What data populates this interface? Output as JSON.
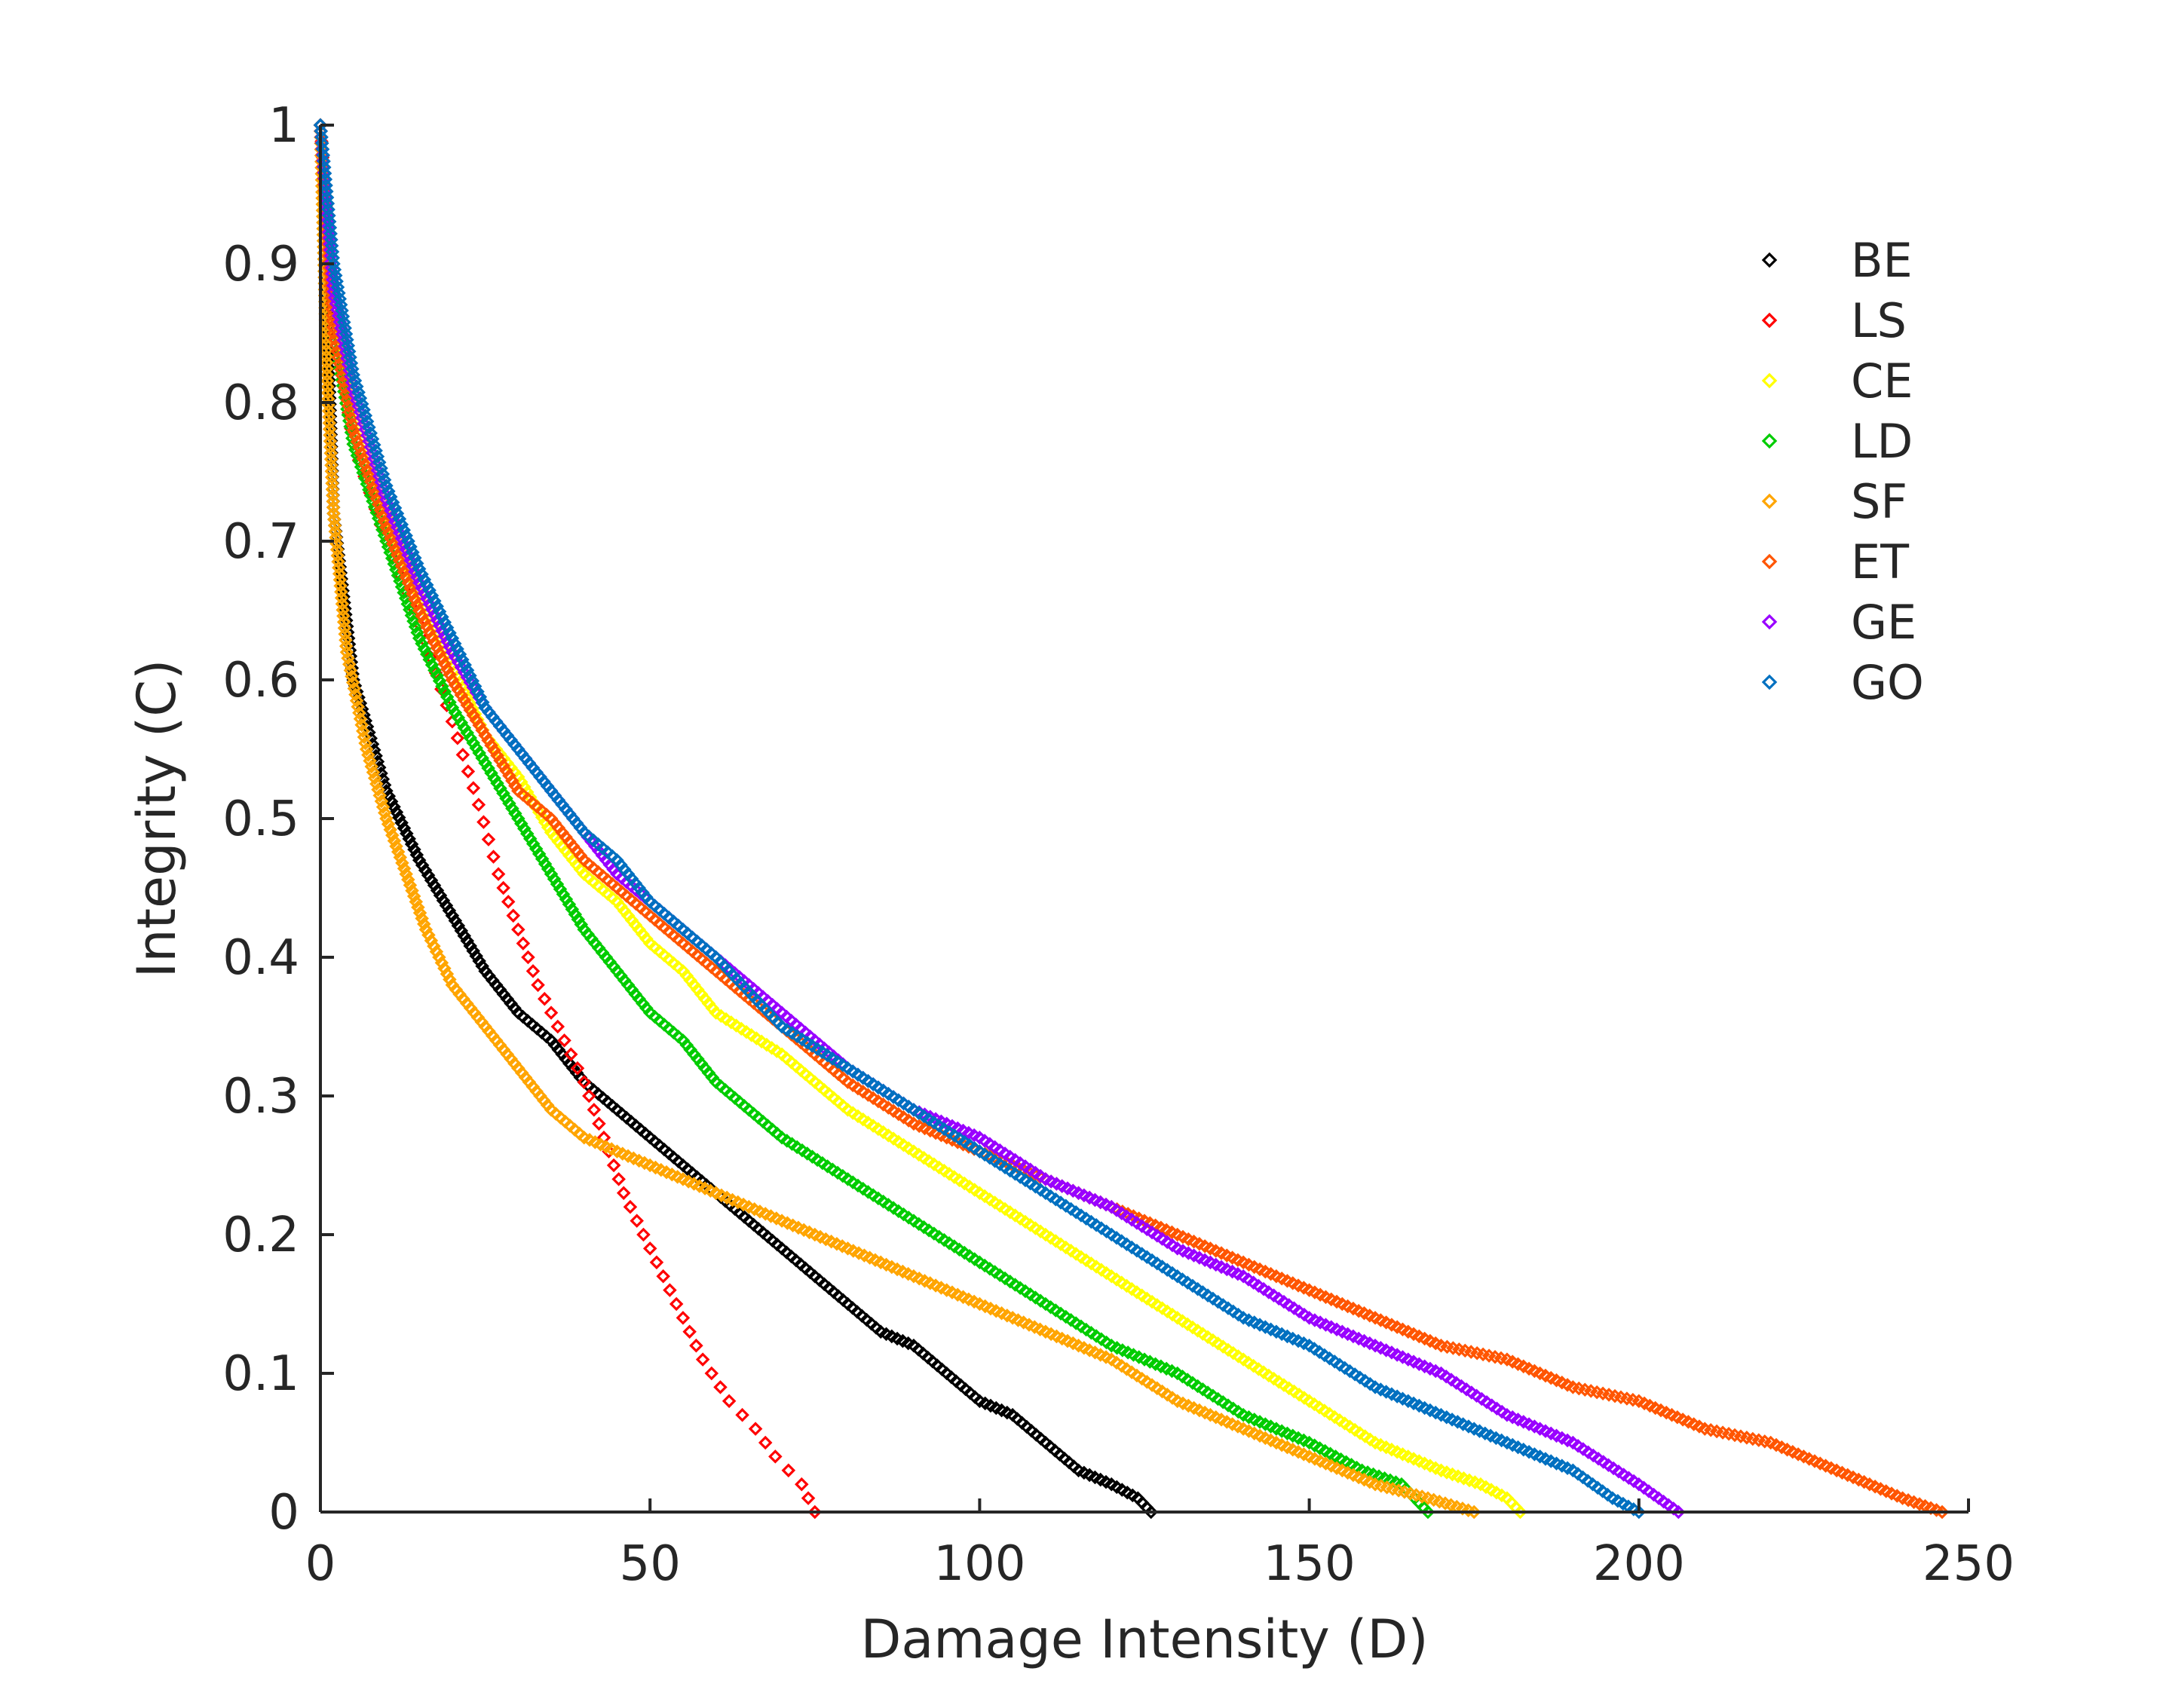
{
  "chart_data": {
    "type": "scatter",
    "title": "",
    "xlabel": "Damage Intensity (D)",
    "ylabel": "Integrity (C)",
    "xlim": [
      0,
      250
    ],
    "ylim": [
      0,
      1
    ],
    "xticks": [
      "0",
      "50",
      "100",
      "150",
      "200",
      "250"
    ],
    "yticks": [
      "0",
      "0.1",
      "0.2",
      "0.3",
      "0.4",
      "0.5",
      "0.6",
      "0.7",
      "0.8",
      "0.9",
      "1"
    ],
    "marker": "diamond",
    "grid": false,
    "legend_position": "top-right",
    "series": [
      {
        "name": "BE",
        "color": "#000000",
        "points": [
          [
            0,
            1.0
          ],
          [
            2,
            0.72
          ],
          [
            5,
            0.6
          ],
          [
            10,
            0.52
          ],
          [
            15,
            0.47
          ],
          [
            20,
            0.43
          ],
          [
            25,
            0.39
          ],
          [
            30,
            0.36
          ],
          [
            35,
            0.34
          ],
          [
            40,
            0.31
          ],
          [
            45,
            0.29
          ],
          [
            50,
            0.27
          ],
          [
            55,
            0.25
          ],
          [
            60,
            0.23
          ],
          [
            65,
            0.21
          ],
          [
            70,
            0.19
          ],
          [
            75,
            0.17
          ],
          [
            80,
            0.15
          ],
          [
            85,
            0.13
          ],
          [
            90,
            0.12
          ],
          [
            95,
            0.1
          ],
          [
            100,
            0.08
          ],
          [
            105,
            0.07
          ],
          [
            110,
            0.05
          ],
          [
            115,
            0.03
          ],
          [
            120,
            0.02
          ],
          [
            124,
            0.01
          ],
          [
            126,
            0.0
          ]
        ]
      },
      {
        "name": "LS",
        "color": "#ff0000",
        "points": [
          [
            0,
            1.0
          ],
          [
            2,
            0.86
          ],
          [
            5,
            0.77
          ],
          [
            10,
            0.7
          ],
          [
            15,
            0.64
          ],
          [
            20,
            0.57
          ],
          [
            24,
            0.51
          ],
          [
            27,
            0.46
          ],
          [
            30,
            0.42
          ],
          [
            33,
            0.38
          ],
          [
            36,
            0.35
          ],
          [
            40,
            0.31
          ],
          [
            43,
            0.27
          ],
          [
            46,
            0.23
          ],
          [
            50,
            0.19
          ],
          [
            54,
            0.15
          ],
          [
            58,
            0.11
          ],
          [
            62,
            0.08
          ],
          [
            66,
            0.06
          ],
          [
            69,
            0.04
          ],
          [
            71,
            0.03
          ],
          [
            73,
            0.02
          ],
          [
            74,
            0.01
          ],
          [
            75,
            0.0
          ]
        ]
      },
      {
        "name": "CE",
        "color": "#ffff00",
        "points": [
          [
            0,
            1.0
          ],
          [
            2,
            0.88
          ],
          [
            5,
            0.8
          ],
          [
            10,
            0.72
          ],
          [
            15,
            0.66
          ],
          [
            20,
            0.61
          ],
          [
            25,
            0.56
          ],
          [
            30,
            0.53
          ],
          [
            35,
            0.49
          ],
          [
            40,
            0.46
          ],
          [
            45,
            0.44
          ],
          [
            50,
            0.41
          ],
          [
            55,
            0.39
          ],
          [
            60,
            0.36
          ],
          [
            70,
            0.33
          ],
          [
            80,
            0.29
          ],
          [
            90,
            0.26
          ],
          [
            100,
            0.23
          ],
          [
            110,
            0.2
          ],
          [
            120,
            0.17
          ],
          [
            130,
            0.14
          ],
          [
            140,
            0.11
          ],
          [
            150,
            0.08
          ],
          [
            160,
            0.05
          ],
          [
            170,
            0.03
          ],
          [
            176,
            0.02
          ],
          [
            180,
            0.01
          ],
          [
            182,
            0.0
          ]
        ]
      },
      {
        "name": "LD",
        "color": "#00cc00",
        "points": [
          [
            0,
            1.0
          ],
          [
            2,
            0.85
          ],
          [
            5,
            0.77
          ],
          [
            10,
            0.7
          ],
          [
            15,
            0.63
          ],
          [
            20,
            0.58
          ],
          [
            25,
            0.54
          ],
          [
            30,
            0.5
          ],
          [
            35,
            0.46
          ],
          [
            40,
            0.42
          ],
          [
            45,
            0.39
          ],
          [
            50,
            0.36
          ],
          [
            55,
            0.34
          ],
          [
            60,
            0.31
          ],
          [
            70,
            0.27
          ],
          [
            80,
            0.24
          ],
          [
            90,
            0.21
          ],
          [
            100,
            0.18
          ],
          [
            110,
            0.15
          ],
          [
            120,
            0.12
          ],
          [
            130,
            0.1
          ],
          [
            140,
            0.07
          ],
          [
            150,
            0.05
          ],
          [
            158,
            0.03
          ],
          [
            164,
            0.02
          ],
          [
            168,
            0.0
          ]
        ]
      },
      {
        "name": "SF",
        "color": "#ffa500",
        "points": [
          [
            0,
            1.0
          ],
          [
            1,
            0.82
          ],
          [
            2,
            0.72
          ],
          [
            4,
            0.62
          ],
          [
            7,
            0.55
          ],
          [
            10,
            0.5
          ],
          [
            13,
            0.46
          ],
          [
            16,
            0.42
          ],
          [
            20,
            0.38
          ],
          [
            25,
            0.35
          ],
          [
            30,
            0.32
          ],
          [
            35,
            0.29
          ],
          [
            40,
            0.27
          ],
          [
            45,
            0.26
          ],
          [
            50,
            0.25
          ],
          [
            55,
            0.24
          ],
          [
            60,
            0.23
          ],
          [
            65,
            0.22
          ],
          [
            70,
            0.21
          ],
          [
            80,
            0.19
          ],
          [
            90,
            0.17
          ],
          [
            100,
            0.15
          ],
          [
            110,
            0.13
          ],
          [
            120,
            0.11
          ],
          [
            130,
            0.08
          ],
          [
            140,
            0.06
          ],
          [
            150,
            0.04
          ],
          [
            160,
            0.02
          ],
          [
            168,
            0.01
          ],
          [
            175,
            0.0
          ]
        ]
      },
      {
        "name": "ET",
        "color": "#ff5500",
        "points": [
          [
            0,
            1.0
          ],
          [
            2,
            0.85
          ],
          [
            5,
            0.78
          ],
          [
            10,
            0.71
          ],
          [
            15,
            0.65
          ],
          [
            20,
            0.6
          ],
          [
            25,
            0.56
          ],
          [
            30,
            0.52
          ],
          [
            35,
            0.5
          ],
          [
            40,
            0.47
          ],
          [
            45,
            0.45
          ],
          [
            50,
            0.43
          ],
          [
            55,
            0.41
          ],
          [
            60,
            0.39
          ],
          [
            70,
            0.35
          ],
          [
            80,
            0.31
          ],
          [
            90,
            0.28
          ],
          [
            100,
            0.26
          ],
          [
            110,
            0.24
          ],
          [
            120,
            0.22
          ],
          [
            130,
            0.2
          ],
          [
            140,
            0.18
          ],
          [
            150,
            0.16
          ],
          [
            160,
            0.14
          ],
          [
            170,
            0.12
          ],
          [
            180,
            0.11
          ],
          [
            190,
            0.09
          ],
          [
            200,
            0.08
          ],
          [
            210,
            0.06
          ],
          [
            220,
            0.05
          ],
          [
            230,
            0.03
          ],
          [
            240,
            0.01
          ],
          [
            246,
            0.0
          ]
        ]
      },
      {
        "name": "GE",
        "color": "#9900ff",
        "points": [
          [
            0,
            1.0
          ],
          [
            2,
            0.88
          ],
          [
            5,
            0.81
          ],
          [
            10,
            0.73
          ],
          [
            15,
            0.67
          ],
          [
            20,
            0.62
          ],
          [
            25,
            0.58
          ],
          [
            30,
            0.55
          ],
          [
            35,
            0.52
          ],
          [
            40,
            0.49
          ],
          [
            45,
            0.46
          ],
          [
            50,
            0.44
          ],
          [
            55,
            0.42
          ],
          [
            60,
            0.4
          ],
          [
            70,
            0.36
          ],
          [
            80,
            0.32
          ],
          [
            90,
            0.29
          ],
          [
            100,
            0.27
          ],
          [
            110,
            0.24
          ],
          [
            120,
            0.22
          ],
          [
            130,
            0.19
          ],
          [
            140,
            0.17
          ],
          [
            150,
            0.14
          ],
          [
            160,
            0.12
          ],
          [
            170,
            0.1
          ],
          [
            180,
            0.07
          ],
          [
            190,
            0.05
          ],
          [
            200,
            0.02
          ],
          [
            206,
            0.0
          ]
        ]
      },
      {
        "name": "GO",
        "color": "#0070c0",
        "points": [
          [
            0,
            1.0
          ],
          [
            2,
            0.9
          ],
          [
            5,
            0.82
          ],
          [
            10,
            0.74
          ],
          [
            15,
            0.68
          ],
          [
            20,
            0.63
          ],
          [
            25,
            0.58
          ],
          [
            30,
            0.55
          ],
          [
            35,
            0.52
          ],
          [
            40,
            0.49
          ],
          [
            45,
            0.47
          ],
          [
            50,
            0.44
          ],
          [
            55,
            0.42
          ],
          [
            60,
            0.4
          ],
          [
            70,
            0.35
          ],
          [
            80,
            0.32
          ],
          [
            90,
            0.29
          ],
          [
            100,
            0.26
          ],
          [
            110,
            0.23
          ],
          [
            120,
            0.2
          ],
          [
            130,
            0.17
          ],
          [
            140,
            0.14
          ],
          [
            150,
            0.12
          ],
          [
            160,
            0.09
          ],
          [
            170,
            0.07
          ],
          [
            180,
            0.05
          ],
          [
            190,
            0.03
          ],
          [
            196,
            0.01
          ],
          [
            200,
            0.0
          ]
        ]
      }
    ]
  }
}
